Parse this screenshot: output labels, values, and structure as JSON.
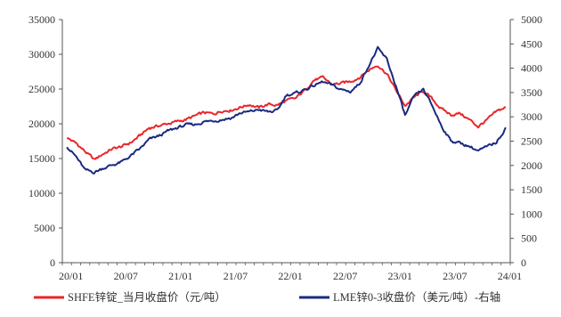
{
  "chart_data": {
    "type": "line",
    "title": "",
    "xlabel": "",
    "ylabel_left": "",
    "ylabel_right": "",
    "ylim_left": [
      0,
      35000
    ],
    "ylim_right": [
      0,
      5000
    ],
    "yticks_left": [
      "0",
      "5000",
      "10000",
      "15000",
      "20000",
      "25000",
      "30000",
      "35000"
    ],
    "yticks_right": [
      "0",
      "500",
      "1000",
      "1500",
      "2000",
      "2500",
      "3000",
      "3500",
      "4000",
      "4500",
      "5000"
    ],
    "xticks": [
      "20/01",
      "20/07",
      "21/01",
      "21/07",
      "22/01",
      "22/07",
      "23/01",
      "23/07",
      "24/01"
    ],
    "grid": false,
    "legend_position": "bottom",
    "x": [
      "2020-01",
      "2020-02",
      "2020-03",
      "2020-04",
      "2020-05",
      "2020-06",
      "2020-07",
      "2020-08",
      "2020-09",
      "2020-10",
      "2020-11",
      "2020-12",
      "2021-01",
      "2021-02",
      "2021-03",
      "2021-04",
      "2021-05",
      "2021-06",
      "2021-07",
      "2021-08",
      "2021-09",
      "2021-10",
      "2021-11",
      "2021-12",
      "2022-01",
      "2022-02",
      "2022-03",
      "2022-04",
      "2022-05",
      "2022-06",
      "2022-07",
      "2022-08",
      "2022-09",
      "2022-10",
      "2022-11",
      "2022-12",
      "2023-01",
      "2023-02",
      "2023-03",
      "2023-04",
      "2023-05",
      "2023-06",
      "2023-07",
      "2023-08",
      "2023-09",
      "2023-10",
      "2023-11",
      "2023-12",
      "2024-01"
    ],
    "series": [
      {
        "name": "SHFE锌锭_当月收盘价（元/吨）",
        "axis": "left",
        "color": "#e8262a",
        "values": [
          18000,
          17200,
          16000,
          14800,
          15700,
          16400,
          16700,
          17300,
          18300,
          19400,
          19700,
          20000,
          20300,
          20600,
          21100,
          21600,
          21400,
          21900,
          22000,
          22400,
          22800,
          22300,
          22800,
          22700,
          23300,
          23600,
          24800,
          26300,
          26600,
          25700,
          25800,
          26100,
          26700,
          27700,
          28500,
          27200,
          24800,
          22600,
          23800,
          24700,
          23500,
          22100,
          21300,
          21500,
          20600,
          19600,
          20600,
          21700,
          22400
        ]
      },
      {
        "name": "LME锌0-3收盘价（美元/吨）-右轴",
        "axis": "right",
        "color": "#1a2a80",
        "values": [
          2400,
          2180,
          1900,
          1860,
          1950,
          2010,
          2070,
          2200,
          2340,
          2530,
          2600,
          2700,
          2770,
          2830,
          2840,
          2900,
          2920,
          2950,
          2980,
          3080,
          3100,
          3150,
          3100,
          3120,
          3450,
          3480,
          3560,
          3640,
          3720,
          3640,
          3560,
          3520,
          3680,
          4050,
          4400,
          4180,
          3630,
          3020,
          3420,
          3560,
          3210,
          2810,
          2510,
          2460,
          2400,
          2300,
          2380,
          2480,
          2780
        ]
      }
    ]
  }
}
